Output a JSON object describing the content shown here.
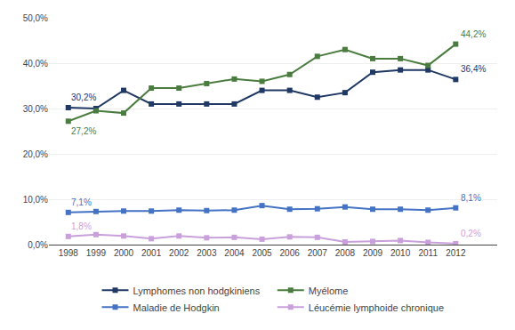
{
  "chart_data": {
    "type": "line",
    "x": [
      1998,
      1999,
      2000,
      2001,
      2002,
      2003,
      2004,
      2005,
      2006,
      2007,
      2008,
      2009,
      2010,
      2011,
      2012
    ],
    "series": [
      {
        "name": "Lymphomes non hodgkiniens",
        "color": "#1f3864",
        "values": [
          30.2,
          30.0,
          34.0,
          31.0,
          31.0,
          31.0,
          31.0,
          34.0,
          34.0,
          32.5,
          33.5,
          38.0,
          38.5,
          38.5,
          36.4
        ],
        "value_labels": [
          "30,2%",
          null,
          null,
          null,
          null,
          null,
          null,
          null,
          null,
          null,
          null,
          null,
          null,
          null,
          "36,4%"
        ]
      },
      {
        "name": "Myélome",
        "color": "#4a7c3f",
        "values": [
          27.2,
          29.5,
          29.0,
          34.5,
          34.5,
          35.5,
          36.5,
          36.0,
          37.5,
          41.5,
          43.0,
          41.0,
          41.0,
          39.5,
          44.2
        ],
        "value_labels": [
          "27,2%",
          null,
          null,
          null,
          null,
          null,
          null,
          null,
          null,
          null,
          null,
          null,
          null,
          null,
          "44,2%"
        ]
      },
      {
        "name": "Maladie de Hodgkin",
        "color": "#4472c4",
        "values": [
          7.1,
          7.3,
          7.4,
          7.4,
          7.6,
          7.5,
          7.6,
          8.6,
          7.8,
          7.9,
          8.3,
          7.8,
          7.8,
          7.6,
          8.1
        ],
        "value_labels": [
          "7,1%",
          null,
          null,
          null,
          null,
          null,
          null,
          null,
          null,
          null,
          null,
          null,
          null,
          null,
          "8,1%"
        ]
      },
      {
        "name": "Léucémie lymphoide chronique",
        "color": "#c9a0dc",
        "values": [
          1.8,
          2.2,
          1.9,
          1.3,
          1.9,
          1.5,
          1.6,
          1.2,
          1.7,
          1.6,
          0.6,
          0.7,
          0.9,
          0.5,
          0.2
        ],
        "value_labels": [
          "1,8%",
          null,
          null,
          null,
          null,
          null,
          null,
          null,
          null,
          null,
          null,
          null,
          null,
          null,
          "0,2%"
        ]
      }
    ],
    "xlim": [
      1997.3,
      2013.5
    ],
    "xticks": [
      1998,
      1999,
      2000,
      2001,
      2002,
      2003,
      2004,
      2005,
      2006,
      2007,
      2008,
      2009,
      2010,
      2011,
      2012
    ],
    "ylim": [
      0,
      50
    ],
    "yticks": [
      {
        "value": 0,
        "label": "0,0%"
      },
      {
        "value": 10,
        "label": "10,0%"
      },
      {
        "value": 20,
        "label": "20,0%"
      },
      {
        "value": 30,
        "label": "30,0%"
      },
      {
        "value": 40,
        "label": "40,0%"
      },
      {
        "value": 50,
        "label": "50,0%"
      }
    ],
    "grid": "y",
    "legend": "bottom",
    "marker": "square",
    "line_style": "solid"
  }
}
